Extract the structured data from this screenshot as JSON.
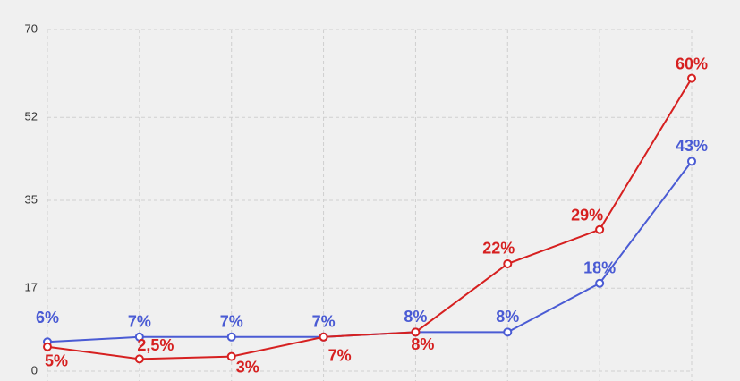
{
  "chart_data": {
    "type": "line",
    "categories": [
      null,
      null,
      null,
      null,
      null,
      null,
      null,
      null
    ],
    "series": [
      {
        "color": "#4a5bd4",
        "values": [
          6,
          7,
          7,
          7,
          8,
          8,
          18,
          43
        ],
        "value_labels": [
          "6%",
          "7%",
          "7%",
          "7%",
          "8%",
          "8%",
          "18%",
          "43%"
        ]
      },
      {
        "color": "#d62020",
        "values": [
          5,
          2.5,
          3,
          7,
          8,
          22,
          29,
          60
        ],
        "value_labels": [
          "5%",
          "2,5%",
          "3%",
          "7%",
          "8%",
          "22%",
          "29%",
          "60%"
        ]
      }
    ],
    "ylim": [
      0,
      70
    ],
    "yticks": [
      0,
      17,
      35,
      52,
      70
    ],
    "grid": true
  }
}
